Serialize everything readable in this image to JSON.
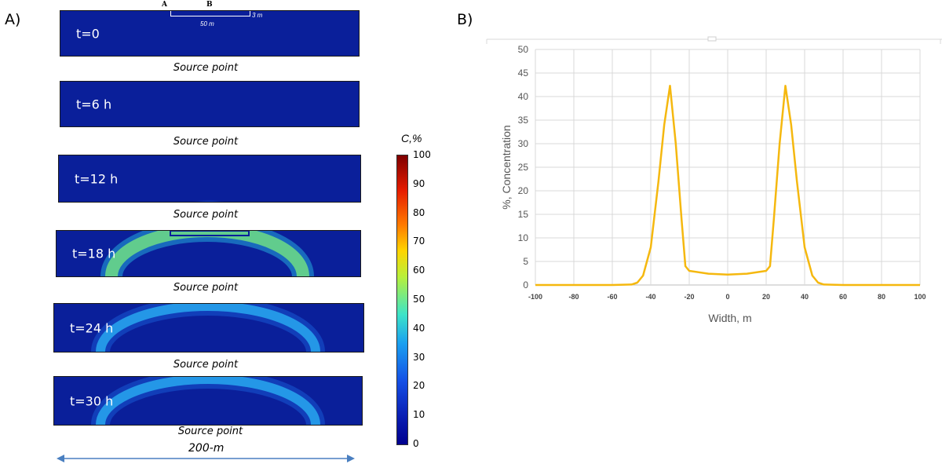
{
  "panel_a": {
    "label": "A)",
    "snapshots": [
      {
        "time": "t=0"
      },
      {
        "time": "t=6 h"
      },
      {
        "time": "t=12 h"
      },
      {
        "time": "t=18 h"
      },
      {
        "time": "t=24 h"
      },
      {
        "time": "t=30 h"
      }
    ],
    "source_label": "Source point",
    "point_a": "A",
    "point_b": "B",
    "dim_width": "50 m",
    "dim_depth": "3 m",
    "scale_label": "200-m",
    "colorbar": {
      "title": "C,%",
      "ticks": [
        "100",
        "90",
        "80",
        "70",
        "60",
        "50",
        "40",
        "30",
        "20",
        "10",
        "0"
      ]
    },
    "colors": {
      "low": "#00008f",
      "high": "#7f0000"
    }
  },
  "panel_b": {
    "label": "B)"
  },
  "chart_data": {
    "type": "line",
    "title": "",
    "xlabel": "Width, m",
    "ylabel": "%, Concentration",
    "xlim": [
      -100,
      100
    ],
    "ylim": [
      0,
      50
    ],
    "x_ticks": [
      "-100",
      "-80",
      "-60",
      "-40",
      "-20",
      "0",
      "20",
      "40",
      "60",
      "80",
      "100"
    ],
    "y_ticks": [
      "0",
      "5",
      "10",
      "15",
      "20",
      "25",
      "30",
      "35",
      "40",
      "45",
      "50"
    ],
    "grid": true,
    "color": "#f5b80f",
    "x": [
      -100,
      -60,
      -50,
      -47,
      -44,
      -40,
      -36,
      -33,
      -30,
      -27,
      -24,
      -22,
      -20,
      -10,
      0,
      10,
      20,
      22,
      24,
      27,
      30,
      33,
      36,
      40,
      44,
      47,
      50,
      60,
      100
    ],
    "y": [
      0,
      0,
      0.1,
      0.5,
      2,
      8,
      22,
      34,
      42.3,
      30,
      14,
      4,
      3,
      2.4,
      2.2,
      2.4,
      3,
      4,
      14,
      30,
      42.3,
      34,
      22,
      8,
      2,
      0.5,
      0.1,
      0,
      0
    ]
  }
}
